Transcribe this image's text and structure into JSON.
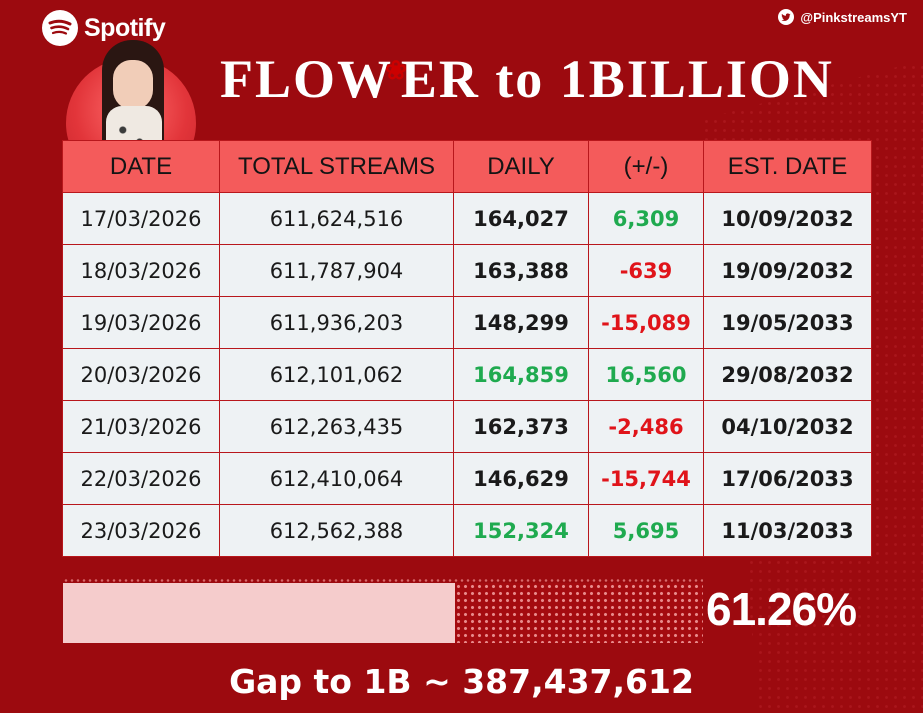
{
  "brand": {
    "name": "Spotify",
    "icon": "spotify-icon"
  },
  "handle": {
    "text": "@PinkstreamsYT",
    "icon": "twitter-icon"
  },
  "title": {
    "part1": "FLOW",
    "part2": "ER to 1BILLION"
  },
  "colors": {
    "background": "#9c0a0f",
    "header": "#f45b5b",
    "cell": "#eef2f4",
    "green": "#1faa4f",
    "red": "#e0141a",
    "progress_fill": "#f5cccc"
  },
  "table": {
    "headers": [
      "DATE",
      "TOTAL STREAMS",
      "DAILY",
      "(+/-)",
      "EST. DATE"
    ],
    "rows": [
      {
        "date": "17/03/2026",
        "total": "611,624,516",
        "daily": "164,027",
        "daily_color": "dark",
        "change": "6,309",
        "change_color": "green",
        "est": "10/09/2032"
      },
      {
        "date": "18/03/2026",
        "total": "611,787,904",
        "daily": "163,388",
        "daily_color": "dark",
        "change": "-639",
        "change_color": "red",
        "est": "19/09/2032"
      },
      {
        "date": "19/03/2026",
        "total": "611,936,203",
        "daily": "148,299",
        "daily_color": "dark",
        "change": "-15,089",
        "change_color": "red",
        "est": "19/05/2033"
      },
      {
        "date": "20/03/2026",
        "total": "612,101,062",
        "daily": "164,859",
        "daily_color": "green",
        "change": "16,560",
        "change_color": "green",
        "est": "29/08/2032"
      },
      {
        "date": "21/03/2026",
        "total": "612,263,435",
        "daily": "162,373",
        "daily_color": "dark",
        "change": "-2,486",
        "change_color": "red",
        "est": "04/10/2032"
      },
      {
        "date": "22/03/2026",
        "total": "612,410,064",
        "daily": "146,629",
        "daily_color": "dark",
        "change": "-15,744",
        "change_color": "red",
        "est": "17/06/2033"
      },
      {
        "date": "23/03/2026",
        "total": "612,562,388",
        "daily": "152,324",
        "daily_color": "green",
        "change": "5,695",
        "change_color": "green",
        "est": "11/03/2033"
      }
    ]
  },
  "progress": {
    "percent_label": "61.26%",
    "fraction": 0.6126
  },
  "gap": {
    "text": "Gap to 1B ~ 387,437,612"
  }
}
